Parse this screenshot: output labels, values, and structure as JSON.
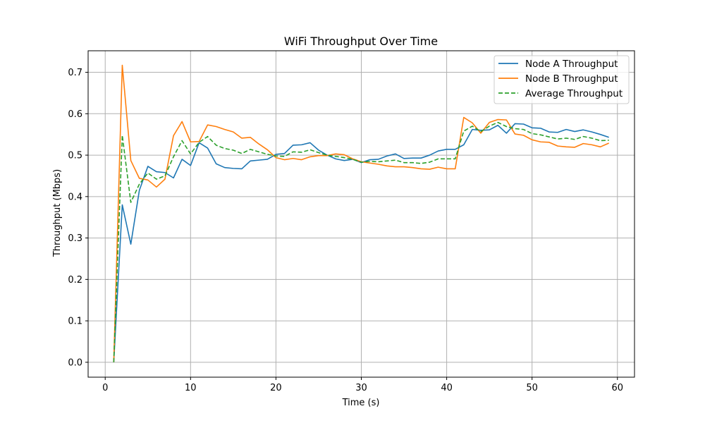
{
  "chart_data": {
    "type": "line",
    "title": "WiFi Throughput Over Time",
    "xlabel": "Time (s)",
    "ylabel": "Throughput (Mbps)",
    "xlim": [
      -2,
      62
    ],
    "ylim": [
      -0.036,
      0.752
    ],
    "xticks": [
      0,
      10,
      20,
      30,
      40,
      50,
      60
    ],
    "yticks": [
      0.0,
      0.1,
      0.2,
      0.3,
      0.4,
      0.5,
      0.6,
      0.7
    ],
    "xtick_labels": [
      "0",
      "10",
      "20",
      "30",
      "40",
      "50",
      "60"
    ],
    "ytick_labels": [
      "0.0",
      "0.1",
      "0.2",
      "0.3",
      "0.4",
      "0.5",
      "0.6",
      "0.7"
    ],
    "grid": true,
    "legend_position": "top-right",
    "x": [
      1,
      2,
      3,
      4,
      5,
      6,
      7,
      8,
      9,
      10,
      11,
      12,
      13,
      14,
      15,
      16,
      17,
      18,
      19,
      20,
      21,
      22,
      23,
      24,
      25,
      26,
      27,
      28,
      29,
      30,
      31,
      32,
      33,
      34,
      35,
      36,
      37,
      38,
      39,
      40,
      41,
      42,
      43,
      44,
      45,
      46,
      47,
      48,
      49,
      50,
      51,
      52,
      53,
      54,
      55,
      56,
      57,
      58,
      59
    ],
    "series": [
      {
        "name": "Node A Throughput",
        "color": "#1f77b4",
        "dash": "solid",
        "values": [
          0.0,
          0.38,
          0.285,
          0.415,
          0.473,
          0.46,
          0.458,
          0.445,
          0.49,
          0.475,
          0.53,
          0.517,
          0.479,
          0.47,
          0.468,
          0.467,
          0.486,
          0.488,
          0.49,
          0.502,
          0.504,
          0.524,
          0.525,
          0.53,
          0.512,
          0.5,
          0.491,
          0.487,
          0.49,
          0.482,
          0.489,
          0.49,
          0.498,
          0.503,
          0.492,
          0.493,
          0.493,
          0.5,
          0.51,
          0.514,
          0.514,
          0.525,
          0.562,
          0.56,
          0.561,
          0.572,
          0.553,
          0.576,
          0.575,
          0.566,
          0.565,
          0.556,
          0.555,
          0.562,
          0.557,
          0.561,
          0.556,
          0.55,
          0.543
        ]
      },
      {
        "name": "Node B Throughput",
        "color": "#ff7f0e",
        "dash": "solid",
        "values": [
          0.0,
          0.717,
          0.487,
          0.444,
          0.44,
          0.423,
          0.442,
          0.547,
          0.581,
          0.532,
          0.533,
          0.573,
          0.569,
          0.562,
          0.556,
          0.541,
          0.543,
          0.527,
          0.513,
          0.494,
          0.489,
          0.492,
          0.489,
          0.496,
          0.499,
          0.499,
          0.503,
          0.501,
          0.491,
          0.484,
          0.481,
          0.478,
          0.474,
          0.472,
          0.472,
          0.47,
          0.467,
          0.466,
          0.471,
          0.467,
          0.467,
          0.591,
          0.578,
          0.553,
          0.579,
          0.586,
          0.585,
          0.551,
          0.548,
          0.537,
          0.532,
          0.531,
          0.522,
          0.52,
          0.519,
          0.528,
          0.525,
          0.52,
          0.529
        ]
      },
      {
        "name": "Average Throughput",
        "color": "#2ca02c",
        "dash": "dashed",
        "values": [
          0.0,
          0.548,
          0.386,
          0.43,
          0.457,
          0.442,
          0.45,
          0.496,
          0.535,
          0.503,
          0.531,
          0.545,
          0.524,
          0.516,
          0.512,
          0.504,
          0.514,
          0.508,
          0.502,
          0.498,
          0.497,
          0.508,
          0.507,
          0.513,
          0.506,
          0.5,
          0.497,
          0.494,
          0.49,
          0.483,
          0.485,
          0.484,
          0.486,
          0.488,
          0.482,
          0.482,
          0.48,
          0.483,
          0.491,
          0.491,
          0.491,
          0.558,
          0.57,
          0.557,
          0.57,
          0.579,
          0.569,
          0.564,
          0.562,
          0.552,
          0.549,
          0.544,
          0.539,
          0.541,
          0.538,
          0.545,
          0.541,
          0.535,
          0.536
        ]
      }
    ]
  }
}
